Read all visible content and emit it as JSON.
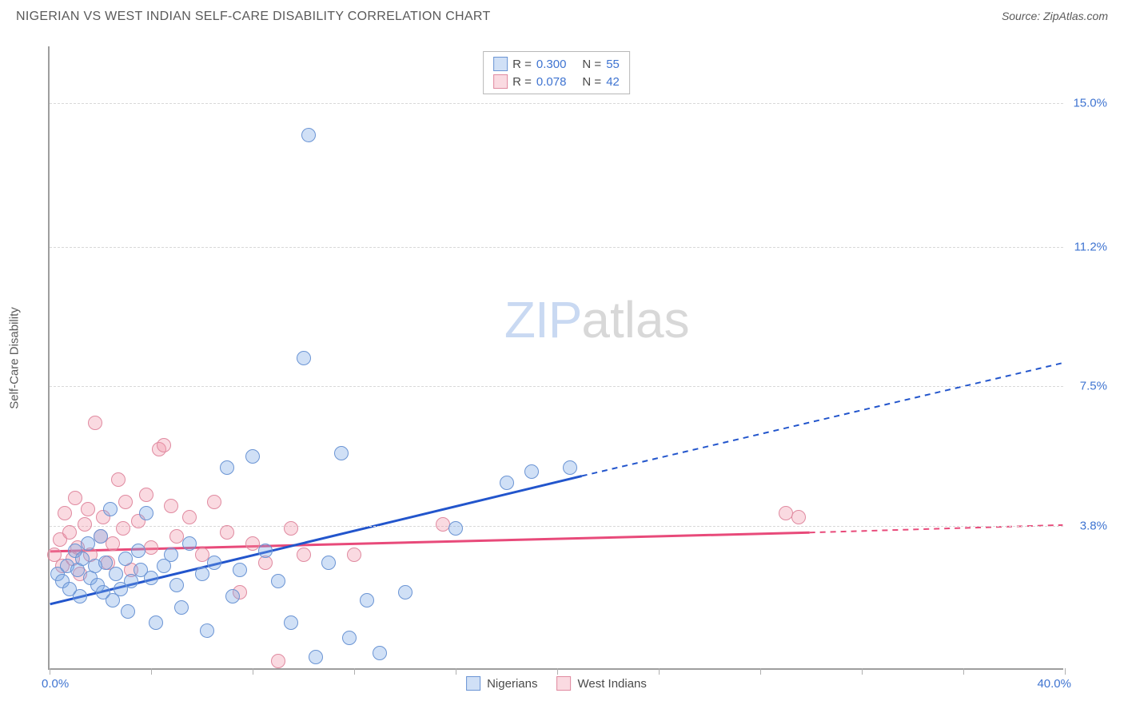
{
  "header": {
    "title": "NIGERIAN VS WEST INDIAN SELF-CARE DISABILITY CORRELATION CHART",
    "source_label": "Source: ",
    "source_value": "ZipAtlas.com"
  },
  "chart": {
    "type": "scatter",
    "y_axis_title": "Self-Care Disability",
    "background_color": "#ffffff",
    "grid_color": "#d8d8d8",
    "axis_color": "#9e9e9e",
    "label_color": "#3f74d1",
    "xlim": [
      0,
      40
    ],
    "ylim": [
      0,
      16.5
    ],
    "x_start_label": "0.0%",
    "x_end_label": "40.0%",
    "x_ticks": [
      0,
      4,
      8,
      12,
      16,
      20,
      24,
      28,
      32,
      36,
      40
    ],
    "y_gridlines": [
      {
        "value": 3.8,
        "label": "3.8%"
      },
      {
        "value": 7.5,
        "label": "7.5%"
      },
      {
        "value": 11.2,
        "label": "11.2%"
      },
      {
        "value": 15.0,
        "label": "15.0%"
      }
    ],
    "marker_radius": 9,
    "marker_stroke_width": 1.5,
    "watermark_zip": "ZIP",
    "watermark_atlas": "atlas"
  },
  "series": {
    "nigerians": {
      "label": "Nigerians",
      "fill_color": "rgba(120, 165, 230, 0.35)",
      "stroke_color": "#6a94d4",
      "trend_color": "#2255cc",
      "r": "0.300",
      "n": "55",
      "trend": {
        "x1": 0,
        "y1": 1.7,
        "x2_solid": 21,
        "y2_solid": 5.1,
        "x2": 40,
        "y2": 8.1
      },
      "points": [
        [
          0.3,
          2.5
        ],
        [
          0.5,
          2.3
        ],
        [
          0.7,
          2.7
        ],
        [
          0.8,
          2.1
        ],
        [
          1.0,
          3.1
        ],
        [
          1.1,
          2.6
        ],
        [
          1.2,
          1.9
        ],
        [
          1.3,
          2.9
        ],
        [
          1.5,
          3.3
        ],
        [
          1.6,
          2.4
        ],
        [
          1.8,
          2.7
        ],
        [
          1.9,
          2.2
        ],
        [
          2.0,
          3.5
        ],
        [
          2.1,
          2.0
        ],
        [
          2.2,
          2.8
        ],
        [
          2.4,
          4.2
        ],
        [
          2.5,
          1.8
        ],
        [
          2.6,
          2.5
        ],
        [
          2.8,
          2.1
        ],
        [
          3.0,
          2.9
        ],
        [
          3.1,
          1.5
        ],
        [
          3.2,
          2.3
        ],
        [
          3.5,
          3.1
        ],
        [
          3.6,
          2.6
        ],
        [
          3.8,
          4.1
        ],
        [
          4.0,
          2.4
        ],
        [
          4.2,
          1.2
        ],
        [
          4.5,
          2.7
        ],
        [
          4.8,
          3.0
        ],
        [
          5.0,
          2.2
        ],
        [
          5.2,
          1.6
        ],
        [
          5.5,
          3.3
        ],
        [
          6.0,
          2.5
        ],
        [
          6.2,
          1.0
        ],
        [
          6.5,
          2.8
        ],
        [
          7.0,
          5.3
        ],
        [
          7.2,
          1.9
        ],
        [
          7.5,
          2.6
        ],
        [
          8.0,
          5.6
        ],
        [
          8.5,
          3.1
        ],
        [
          9.0,
          2.3
        ],
        [
          9.5,
          1.2
        ],
        [
          10.0,
          8.2
        ],
        [
          10.2,
          14.1
        ],
        [
          10.5,
          0.3
        ],
        [
          11.0,
          2.8
        ],
        [
          11.5,
          5.7
        ],
        [
          11.8,
          0.8
        ],
        [
          12.5,
          1.8
        ],
        [
          13.0,
          0.4
        ],
        [
          14.0,
          2.0
        ],
        [
          16.0,
          3.7
        ],
        [
          18.0,
          4.9
        ],
        [
          19.0,
          5.2
        ],
        [
          20.5,
          5.3
        ]
      ]
    },
    "west_indians": {
      "label": "West Indians",
      "fill_color": "rgba(240, 150, 170, 0.35)",
      "stroke_color": "#e08aa0",
      "trend_color": "#e84a7a",
      "r": "0.078",
      "n": "42",
      "trend": {
        "x1": 0,
        "y1": 3.1,
        "x2_solid": 30,
        "y2_solid": 3.6,
        "x2": 40,
        "y2": 3.8
      },
      "points": [
        [
          0.2,
          3.0
        ],
        [
          0.4,
          3.4
        ],
        [
          0.5,
          2.7
        ],
        [
          0.6,
          4.1
        ],
        [
          0.8,
          3.6
        ],
        [
          0.9,
          2.9
        ],
        [
          1.0,
          4.5
        ],
        [
          1.1,
          3.2
        ],
        [
          1.2,
          2.5
        ],
        [
          1.4,
          3.8
        ],
        [
          1.5,
          4.2
        ],
        [
          1.6,
          3.0
        ],
        [
          1.8,
          6.5
        ],
        [
          2.0,
          3.5
        ],
        [
          2.1,
          4.0
        ],
        [
          2.3,
          2.8
        ],
        [
          2.5,
          3.3
        ],
        [
          2.7,
          5.0
        ],
        [
          2.9,
          3.7
        ],
        [
          3.0,
          4.4
        ],
        [
          3.2,
          2.6
        ],
        [
          3.5,
          3.9
        ],
        [
          3.8,
          4.6
        ],
        [
          4.0,
          3.2
        ],
        [
          4.3,
          5.8
        ],
        [
          4.5,
          5.9
        ],
        [
          4.8,
          4.3
        ],
        [
          5.0,
          3.5
        ],
        [
          5.5,
          4.0
        ],
        [
          6.0,
          3.0
        ],
        [
          6.5,
          4.4
        ],
        [
          7.0,
          3.6
        ],
        [
          7.5,
          2.0
        ],
        [
          8.0,
          3.3
        ],
        [
          8.5,
          2.8
        ],
        [
          9.0,
          0.2
        ],
        [
          9.5,
          3.7
        ],
        [
          10.0,
          3.0
        ],
        [
          12.0,
          3.0
        ],
        [
          15.5,
          3.8
        ],
        [
          29.0,
          4.1
        ],
        [
          29.5,
          4.0
        ]
      ]
    }
  },
  "legend_box": {
    "r_label": "R =",
    "n_label": "N ="
  }
}
